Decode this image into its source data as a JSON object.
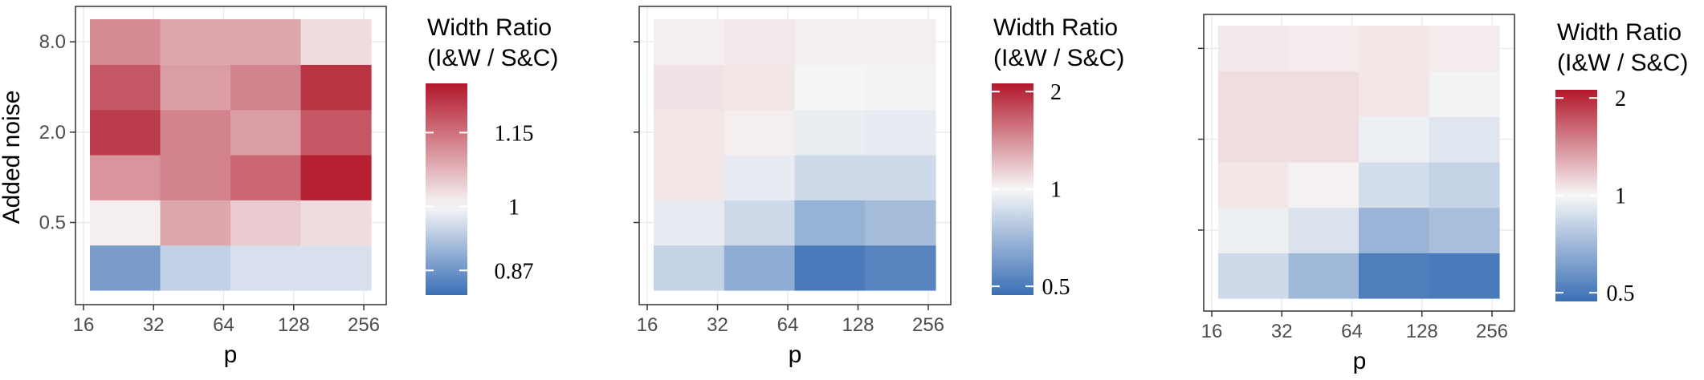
{
  "chart_data": [
    {
      "type": "heatmap",
      "panel": 1,
      "xlabel": "p",
      "ylabel": "Added noise",
      "x_ticks": [
        "16",
        "32",
        "64",
        "128",
        "256"
      ],
      "x_values": [
        22,
        45,
        90,
        181,
        362
      ],
      "y_ticks": [
        "8.0",
        "2.0",
        "0.5"
      ],
      "y_values": [
        0.25,
        0.5,
        1,
        2,
        4,
        8
      ],
      "y_scale": "log",
      "legend": {
        "title": [
          "Width Ratio",
          "(I&W / S&C)"
        ],
        "ticks": [
          "1.15",
          "1",
          "0.87"
        ],
        "tick_values": [
          1.15,
          1,
          0.87
        ],
        "range": [
          0.82,
          1.25
        ],
        "colors": [
          "#3a6fb5",
          "#f7f7f7",
          "#b2182b"
        ]
      },
      "values": [
        [
          0.88,
          0.95,
          0.97,
          0.97
        ],
        [
          1.01,
          1.09,
          1.05,
          1.03
        ],
        [
          1.11,
          1.13,
          1.16,
          1.24
        ],
        [
          1.21,
          1.13,
          1.1,
          1.18
        ],
        [
          1.18,
          1.1,
          1.13,
          1.22
        ],
        [
          1.12,
          1.09,
          1.09,
          1.03
        ]
      ]
    },
    {
      "type": "heatmap",
      "panel": 2,
      "xlabel": "p",
      "ylabel": "",
      "x_ticks": [
        "16",
        "32",
        "64",
        "128",
        "256"
      ],
      "x_values": [
        22,
        45,
        90,
        181,
        362
      ],
      "y_ticks": [
        "",
        "",
        ""
      ],
      "y_values": [
        0.25,
        0.5,
        1,
        2,
        4,
        8
      ],
      "y_scale": "log",
      "legend": {
        "title": [
          "Width Ratio",
          "(I&W / S&C)"
        ],
        "ticks": [
          "2",
          "1",
          "0.5"
        ],
        "tick_values": [
          2,
          1,
          0.5
        ],
        "range": [
          0.47,
          2.12
        ],
        "scale": "log",
        "colors": [
          "#3a6fb5",
          "#f7f7f7",
          "#b2182b"
        ]
      },
      "values": [
        [
          0.82,
          0.66,
          0.5,
          0.53
        ],
        [
          0.94,
          0.85,
          0.68,
          0.72
        ],
        [
          1.06,
          0.94,
          0.85,
          0.85
        ],
        [
          1.06,
          1.03,
          0.95,
          0.94
        ],
        [
          1.07,
          1.06,
          0.99,
          0.98
        ],
        [
          1.03,
          1.05,
          1.03,
          1.03
        ]
      ]
    },
    {
      "type": "heatmap",
      "panel": 3,
      "xlabel": "p",
      "ylabel": "",
      "x_ticks": [
        "16",
        "32",
        "64",
        "128",
        "256"
      ],
      "x_values": [
        22,
        45,
        90,
        181,
        362
      ],
      "y_ticks": [
        "",
        "",
        ""
      ],
      "y_values": [
        0.25,
        0.5,
        1,
        2,
        4,
        8
      ],
      "y_scale": "log",
      "legend": {
        "title": [
          "Width Ratio",
          "(I&W / S&C)"
        ],
        "ticks": [
          "2",
          "1",
          "0.5"
        ],
        "tick_values": [
          2,
          1,
          0.5
        ],
        "range": [
          0.47,
          2.12
        ],
        "scale": "log",
        "colors": [
          "#3a6fb5",
          "#f7f7f7",
          "#b2182b"
        ]
      },
      "values": [
        [
          0.85,
          0.71,
          0.51,
          0.5
        ],
        [
          0.96,
          0.89,
          0.69,
          0.73
        ],
        [
          1.06,
          1.02,
          0.87,
          0.82
        ],
        [
          1.09,
          1.09,
          0.96,
          0.91
        ],
        [
          1.09,
          1.09,
          1.06,
          0.98
        ],
        [
          1.05,
          1.04,
          1.06,
          1.04
        ]
      ]
    }
  ]
}
